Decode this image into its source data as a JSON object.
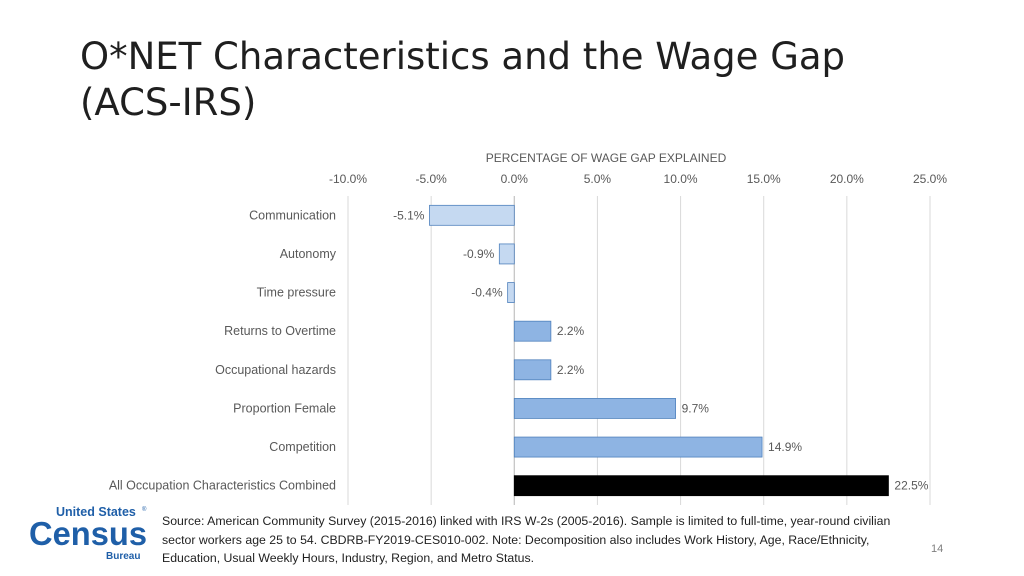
{
  "slide": {
    "title_line1": "O*NET Characteristics and the Wage Gap",
    "title_line2": "(ACS-IRS)",
    "source_note": "Source: American Community Survey (2015-2016) linked with IRS W-2s (2005-2016). Sample is limited to full-time, year-round civilian sector workers age 25 to 54. CBDRB-FY2019-CES010-002. Note: Decomposition also includes Work History, Age, Race/Ethnicity, Education, Usual Weekly Hours,  Industry, Region, and Metro Status.",
    "page_number": "14"
  },
  "logo": {
    "line1": "United States",
    "registered": "®",
    "line2": "Census",
    "line3": "Bureau",
    "color": "#1f5fa8"
  },
  "chart_data": {
    "type": "bar",
    "orientation": "horizontal",
    "axis_title": "PERCENTAGE OF WAGE GAP EXPLAINED",
    "axis_position": "top",
    "xlim": [
      -10,
      25
    ],
    "ticks": [
      -10,
      -5,
      0,
      5,
      10,
      15,
      20,
      25
    ],
    "tick_labels": [
      "-10.0%",
      "-5.0%",
      "0.0%",
      "5.0%",
      "10.0%",
      "15.0%",
      "20.0%",
      "25.0%"
    ],
    "vertical_gridlines": true,
    "categories": [
      "Communication",
      "Autonomy",
      "Time pressure",
      "Returns to Overtime",
      "Occupational hazards",
      "Proportion Female",
      "Competition",
      "All Occupation Characteristics Combined"
    ],
    "values": [
      -5.1,
      -0.9,
      -0.4,
      2.2,
      2.2,
      9.7,
      14.9,
      22.5
    ],
    "data_labels": [
      "-5.1%",
      "-0.9%",
      "-0.4%",
      "2.2%",
      "2.2%",
      "9.7%",
      "14.9%",
      "22.5%"
    ],
    "colors": {
      "negative_fill": "#c5d9f1",
      "positive_fill": "#8eb4e3",
      "total_fill": "#000000",
      "bar_stroke": "#4f81bd"
    }
  }
}
